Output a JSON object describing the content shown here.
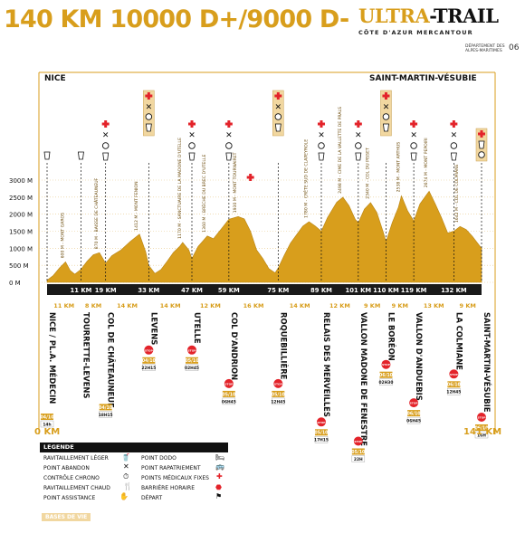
{
  "header": {
    "title": "140 KM 10000 D+/9000 D-",
    "brand_ultra": "ULTRA",
    "brand_trail": "TRAIL",
    "brand_sub": "CÔTE D'AZUR MERCANTOUR",
    "dept_label": "DÉPARTEMENT DES ALPES-MARITIMES",
    "dept_number": "06"
  },
  "profile": {
    "start_place": "NICE",
    "end_place": "SAINT-MARTIN-VÉSUBIE",
    "y_labels": [
      "3000 M",
      "2500 M",
      "2000 M",
      "1500 M",
      "1000 M",
      "500 M",
      "0 M"
    ],
    "km_markers": [
      "11 KM",
      "19 KM",
      "33 KM",
      "47 KM",
      "59 KM",
      "75 KM",
      "89 KM",
      "101 KM",
      "110 KM",
      "119 KM",
      "132 KM"
    ],
    "segment_lengths": [
      "11 KM",
      "8 KM",
      "14 KM",
      "14 KM",
      "12 KM",
      "16 KM",
      "14 KM",
      "12 KM",
      "9 KM",
      "9 KM",
      "13 KM",
      "9 KM"
    ],
    "summit_labels": [
      "600 M - MONT GAROS",
      "870 M - BAISSE DE CHÂTEAUNEUF",
      "1412 M - MONT FENION",
      "1170 M - SANCTUAIRE DE LA MADONE D'UTELLE",
      "1360 M - BRÈCHE DU BREC D'UTELLE",
      "1930 M - MONT TOURNAIRET",
      "1780 M - CRÊTE SUD DE CLAPEYROLE",
      "2498 M - CIME DE LA VALLETTE DE PRALS",
      "2340 M - COL DU PISSET",
      "2538 M - MONT ARTHUS",
      "2674 M - MONT PEPOIRI",
      "1642 M - COL DE COLMIANE"
    ],
    "stations": [
      {
        "name": "NICE / PL.A. MÉDECIN",
        "barrier_date": "04/10",
        "barrier_time": "14h",
        "stop": false
      },
      {
        "name": "TOURRETTE-LEVENS",
        "stop": false
      },
      {
        "name": "COL DE CHÂTEAUNEUF",
        "barrier_date": "04/10",
        "barrier_time": "18H15",
        "stop": false
      },
      {
        "name": "LEVENS",
        "barrier_date": "04/10",
        "barrier_time": "22H15",
        "stop": true
      },
      {
        "name": "UTELLE",
        "barrier_date": "05/10",
        "barrier_time": "02H45",
        "stop": true
      },
      {
        "name": "COL D'ANDRION",
        "barrier_date": "05/10",
        "barrier_time": "06H45",
        "stop": true
      },
      {
        "name": "ROQUEBILLIÈRE",
        "barrier_date": "05/10",
        "barrier_time": "12H45",
        "stop": true
      },
      {
        "name": "RELAIS DES MERVEILLES",
        "barrier_date": "05/10",
        "barrier_time": "17H15",
        "stop": true
      },
      {
        "name": "VALLON MADONE DE FENESTRE",
        "barrier_date": "05/10",
        "barrier_time": "22H",
        "stop": true
      },
      {
        "name": "LE BORÉON",
        "barrier_date": "06/10",
        "barrier_time": "02H30",
        "stop": true
      },
      {
        "name": "VALLON D'ANDUEBIS",
        "barrier_date": "06/10",
        "barrier_time": "06H45",
        "stop": true
      },
      {
        "name": "LA COLMIANE",
        "barrier_date": "06/10",
        "barrier_time": "12H45",
        "stop": true
      },
      {
        "name": "SAINT-MARTIN-VÉSUBIE",
        "barrier_date": "06/10",
        "barrier_time": "16H",
        "stop": true
      }
    ],
    "km_start": "0 KM",
    "km_end": "141 KM"
  },
  "legend": {
    "title": "LEGENDE",
    "items": [
      {
        "label": "RAVITAILLEMENT LÉGER",
        "icon": "cup-icon"
      },
      {
        "label": "POINT ABANDON",
        "icon": "cross-icon"
      },
      {
        "label": "CONTRÔLE CHRONO",
        "icon": "stopwatch-icon"
      },
      {
        "label": "RAVITAILLEMENT CHAUD",
        "icon": "fork-knife-icon"
      },
      {
        "label": "POINT ASSISTANCE",
        "icon": "hands-icon"
      },
      {
        "label": "POINT DODO",
        "icon": "bed-icon"
      },
      {
        "label": "POINT RAPATRIEMENT",
        "icon": "bus-icon"
      },
      {
        "label": "POINTS MÉDICAUX FIXES",
        "icon": "medical-cross-icon"
      },
      {
        "label": "BARRIÈRE HORAIRE",
        "icon": "stop-sign-icon"
      },
      {
        "label": "DÉPART",
        "icon": "flag-icon"
      }
    ],
    "base_label": "BASES DE VIE"
  },
  "colors": {
    "gold": "#d89e1c",
    "dark": "#111111",
    "red": "#e3232a",
    "base_bg": "#f1d7a0"
  }
}
